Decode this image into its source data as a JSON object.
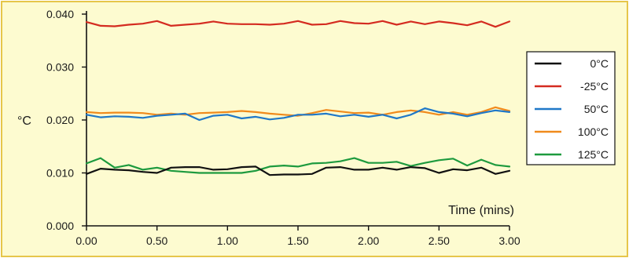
{
  "chart_data": {
    "type": "line",
    "title": "",
    "xlabel": "Time (mins)",
    "ylabel": "°C",
    "xlim": [
      0,
      3
    ],
    "ylim": [
      0,
      0.04
    ],
    "x_ticks": [
      "0.00",
      "0.50",
      "1.00",
      "1.50",
      "2.00",
      "2.50",
      "3.00"
    ],
    "y_ticks": [
      "0.000",
      "0.010",
      "0.020",
      "0.030",
      "0.040"
    ],
    "grid": false,
    "legend_position": "right",
    "background_color": "#fdfbd0",
    "border_color": "#e6c64a",
    "x": [
      0,
      0.1,
      0.2,
      0.3,
      0.4,
      0.5,
      0.6,
      0.7,
      0.8,
      0.9,
      1.0,
      1.1,
      1.2,
      1.3,
      1.4,
      1.5,
      1.6,
      1.7,
      1.8,
      1.9,
      2.0,
      2.1,
      2.2,
      2.3,
      2.4,
      2.5,
      2.6,
      2.7,
      2.8,
      2.9,
      3.0
    ],
    "series": [
      {
        "name": "0°C",
        "color": "#111111",
        "values": [
          0.0098,
          0.0108,
          0.0106,
          0.0105,
          0.0102,
          0.01,
          0.011,
          0.0111,
          0.0111,
          0.0106,
          0.0107,
          0.0111,
          0.0112,
          0.0096,
          0.0097,
          0.0097,
          0.0098,
          0.011,
          0.0111,
          0.0106,
          0.0106,
          0.011,
          0.0106,
          0.0111,
          0.0109,
          0.01,
          0.0107,
          0.0105,
          0.011,
          0.0098,
          0.0104
        ]
      },
      {
        "name": "-25°C",
        "color": "#d42b20",
        "values": [
          0.0385,
          0.0378,
          0.0377,
          0.038,
          0.0382,
          0.0387,
          0.0378,
          0.038,
          0.0382,
          0.0386,
          0.0382,
          0.0381,
          0.0381,
          0.038,
          0.0382,
          0.0387,
          0.038,
          0.0381,
          0.0387,
          0.0383,
          0.0382,
          0.0387,
          0.038,
          0.0386,
          0.0381,
          0.0386,
          0.0383,
          0.0379,
          0.0386,
          0.0376,
          0.0386
        ]
      },
      {
        "name": "50°C",
        "color": "#1f78c8",
        "values": [
          0.021,
          0.0205,
          0.0207,
          0.0206,
          0.0204,
          0.0208,
          0.021,
          0.0212,
          0.02,
          0.0208,
          0.021,
          0.0203,
          0.0206,
          0.0201,
          0.0204,
          0.021,
          0.021,
          0.0212,
          0.0207,
          0.021,
          0.0206,
          0.021,
          0.0203,
          0.021,
          0.0222,
          0.0215,
          0.0212,
          0.0207,
          0.0213,
          0.0218,
          0.0215
        ]
      },
      {
        "name": "100°C",
        "color": "#f08a1c",
        "values": [
          0.0215,
          0.0213,
          0.0214,
          0.0214,
          0.0213,
          0.021,
          0.0212,
          0.021,
          0.0213,
          0.0214,
          0.0215,
          0.0217,
          0.0215,
          0.0212,
          0.021,
          0.0208,
          0.0213,
          0.0219,
          0.0216,
          0.0213,
          0.0214,
          0.021,
          0.0215,
          0.0218,
          0.0215,
          0.021,
          0.0215,
          0.021,
          0.0215,
          0.0224,
          0.0217
        ]
      },
      {
        "name": "125°C",
        "color": "#1d9a3e",
        "values": [
          0.0118,
          0.0128,
          0.011,
          0.0115,
          0.0106,
          0.011,
          0.0104,
          0.0102,
          0.01,
          0.01,
          0.01,
          0.01,
          0.0104,
          0.0112,
          0.0114,
          0.0112,
          0.0118,
          0.0119,
          0.0122,
          0.0128,
          0.0119,
          0.0119,
          0.0121,
          0.0113,
          0.0119,
          0.0124,
          0.0127,
          0.0114,
          0.0125,
          0.0115,
          0.0112
        ]
      }
    ]
  }
}
